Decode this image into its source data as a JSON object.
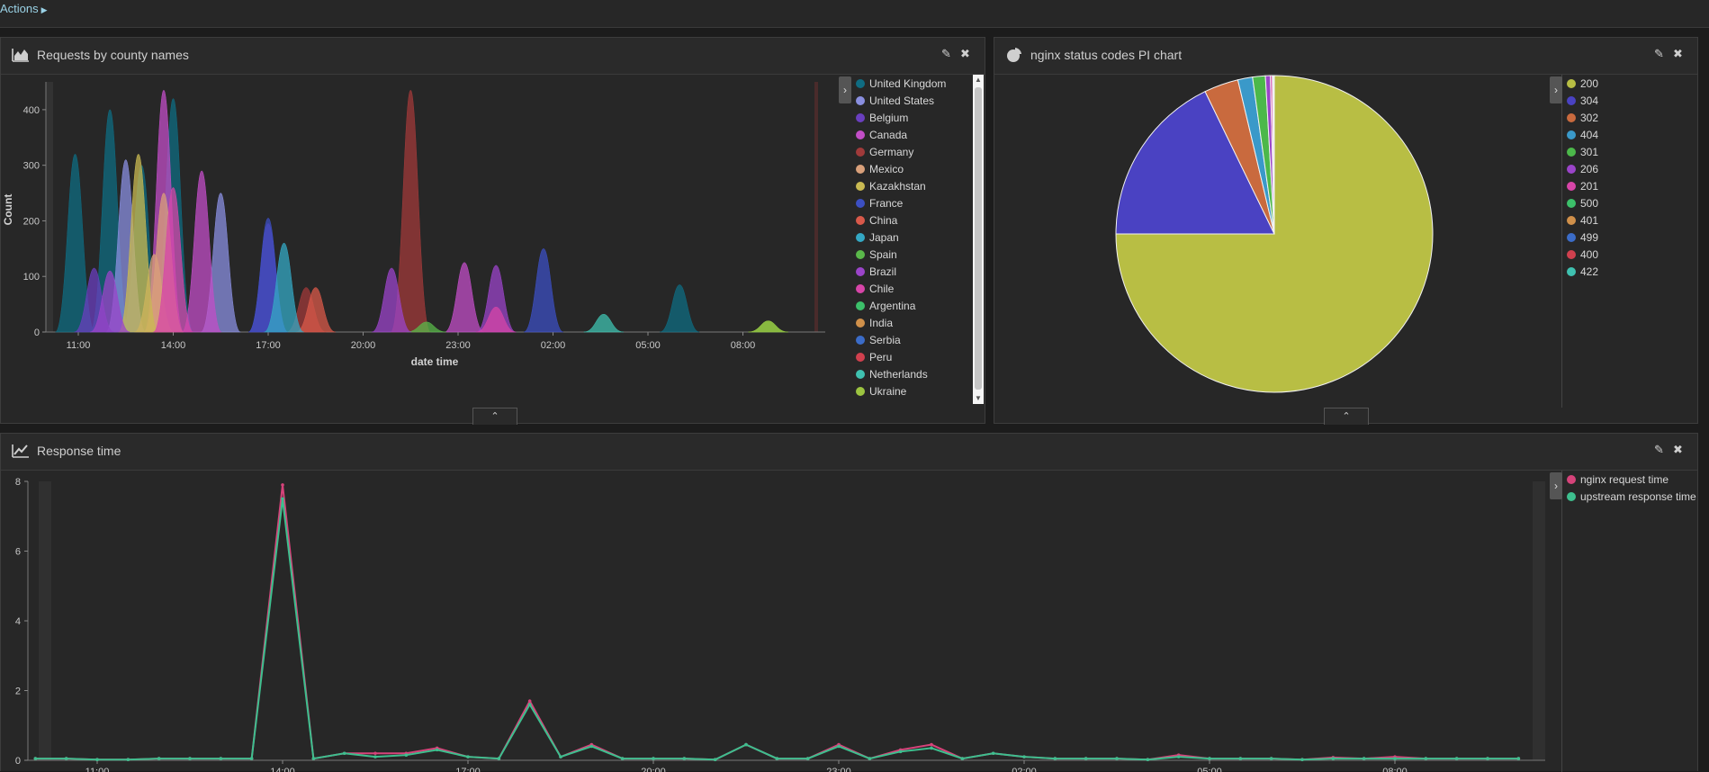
{
  "topbar": {
    "actions_label": "Actions"
  },
  "panels": {
    "requests": {
      "title": "Requests by county names",
      "icon": "area-chart-icon",
      "legend": [
        "United Kingdom",
        "United States",
        "Belgium",
        "Canada",
        "Germany",
        "Mexico",
        "Kazakhstan",
        "France",
        "China",
        "Japan",
        "Spain",
        "Brazil",
        "Chile",
        "Argentina",
        "India",
        "Serbia",
        "Peru",
        "Netherlands",
        "Ukraine"
      ]
    },
    "status": {
      "title": "nginx status codes PI chart",
      "icon": "pie-chart-icon",
      "legend": [
        "200",
        "304",
        "302",
        "404",
        "301",
        "206",
        "201",
        "500",
        "401",
        "499",
        "400",
        "422"
      ]
    },
    "response": {
      "title": "Response time",
      "icon": "line-chart-icon",
      "legend": [
        "nginx request time",
        "upstream response time"
      ]
    }
  },
  "colors": {
    "United Kingdom": "#0f6c82",
    "United States": "#8a8fe0",
    "Belgium": "#6a3fbf",
    "Canada": "#c24ec7",
    "Germany": "#a03a3a",
    "Mexico": "#d9a07a",
    "Kazakhstan": "#c9ba52",
    "France": "#3c4fc2",
    "China": "#d9594a",
    "Japan": "#34a8c4",
    "Spain": "#5ab84a",
    "Brazil": "#9b44c9",
    "Chile": "#d745a8",
    "Argentina": "#3cc06a",
    "India": "#d0904a",
    "Serbia": "#3b6cc8",
    "Peru": "#d0404e",
    "Netherlands": "#3fc1b0",
    "Ukraine": "#9cc440",
    "200": "#b8be44",
    "304": "#4a42c2",
    "302": "#c96a3e",
    "404": "#3a99c9",
    "301": "#4cb84a",
    "206": "#9b44c9",
    "201": "#d745a8",
    "500": "#3cc06a",
    "401": "#d0904a",
    "499": "#3b6cc8",
    "400": "#d0404e",
    "422": "#3fc1b0",
    "nginx request time": "#d6437a",
    "upstream response time": "#3dbf8e"
  },
  "chart_data": [
    {
      "type": "area",
      "title": "Requests by county names",
      "xlabel": "date time",
      "ylabel": "Count",
      "x_ticks": [
        "11:00",
        "14:00",
        "17:00",
        "20:00",
        "23:00",
        "02:00",
        "05:00",
        "08:00"
      ],
      "y_ticks": [
        0,
        100,
        200,
        300,
        400
      ],
      "ylim": [
        0,
        450
      ],
      "x_unit": "hour offset from 11:00",
      "series": [
        {
          "name": "United Kingdom",
          "peaks": [
            [
              -0.1,
              320
            ],
            [
              1.0,
              400
            ],
            [
              2.0,
              300
            ],
            [
              3.0,
              420
            ],
            [
              19.0,
              85
            ]
          ]
        },
        {
          "name": "United States",
          "peaks": [
            [
              1.5,
              310
            ],
            [
              4.5,
              250
            ]
          ]
        },
        {
          "name": "Belgium",
          "peaks": [
            [
              0.5,
              115
            ],
            [
              6.0,
              195
            ]
          ]
        },
        {
          "name": "Canada",
          "peaks": [
            [
              2.7,
              435
            ],
            [
              3.9,
              290
            ],
            [
              12.2,
              125
            ]
          ]
        },
        {
          "name": "Germany",
          "peaks": [
            [
              10.5,
              435
            ],
            [
              7.2,
              80
            ]
          ]
        },
        {
          "name": "Mexico",
          "peaks": [
            [
              2.7,
              250
            ],
            [
              2.4,
              140
            ]
          ]
        },
        {
          "name": "Kazakhstan",
          "peaks": [
            [
              1.9,
              320
            ]
          ]
        },
        {
          "name": "France",
          "peaks": [
            [
              6.0,
              205
            ],
            [
              14.7,
              150
            ]
          ]
        },
        {
          "name": "China",
          "peaks": [
            [
              7.5,
              80
            ]
          ]
        },
        {
          "name": "Japan",
          "peaks": [
            [
              6.5,
              160
            ]
          ]
        },
        {
          "name": "Spain",
          "peaks": [
            [
              11.0,
              18
            ],
            [
              21.8,
              20
            ]
          ]
        },
        {
          "name": "Brazil",
          "peaks": [
            [
              1.0,
              110
            ],
            [
              9.9,
              115
            ],
            [
              13.2,
              120
            ]
          ]
        },
        {
          "name": "Chile",
          "peaks": [
            [
              3.0,
              260
            ],
            [
              13.2,
              45
            ]
          ]
        },
        {
          "name": "Netherlands",
          "peaks": [
            [
              16.6,
              32
            ]
          ]
        },
        {
          "name": "Ukraine",
          "peaks": [
            [
              21.8,
              20
            ]
          ]
        }
      ]
    },
    {
      "type": "pie",
      "title": "nginx status codes PI chart",
      "categories": [
        "200",
        "304",
        "302",
        "404",
        "301",
        "206",
        "201",
        "500",
        "401",
        "499",
        "400",
        "422"
      ],
      "values": [
        75.0,
        17.8,
        3.5,
        1.5,
        1.3,
        0.5,
        0.2,
        0.1,
        0.05,
        0.03,
        0.01,
        0.01
      ]
    },
    {
      "type": "line",
      "title": "Response time",
      "x_ticks": [
        "11:00",
        "14:00",
        "17:00",
        "20:00",
        "23:00",
        "02:00",
        "05:00",
        "08:00"
      ],
      "y_ticks": [
        0,
        2,
        4,
        6,
        8
      ],
      "ylim": [
        0,
        8
      ],
      "x_unit": "hour offset from 11:00",
      "series": [
        {
          "name": "nginx request time",
          "x": [
            -3,
            -2.5,
            -2,
            -1.5,
            -1,
            -0.5,
            0,
            0.5,
            1,
            1.5,
            2,
            2.5,
            3,
            3.5,
            4,
            4.5,
            5,
            5.5,
            6,
            6.5,
            7,
            7.5,
            8,
            8.5,
            9,
            9.5,
            10,
            10.5,
            11,
            11.5,
            12,
            12.5,
            13,
            13.5,
            14,
            14.5,
            15,
            15.5,
            16,
            16.5,
            17,
            17.5,
            18,
            18.5,
            19,
            19.5,
            20,
            20.5,
            21,
            21.5,
            22,
            22.5,
            23,
            23.5,
            24,
            24.5,
            25,
            25.5,
            26
          ],
          "values": [
            0.1,
            0.05,
            0.05,
            0.05,
            0.05,
            0.05,
            0.02,
            0.02,
            0.05,
            0.05,
            0.05,
            0.05,
            7.9,
            0.05,
            0.2,
            0.2,
            0.2,
            0.35,
            0.1,
            0.05,
            1.7,
            0.1,
            0.45,
            0.05,
            0.05,
            0.05,
            0.02,
            0.45,
            0.05,
            0.05,
            0.45,
            0.05,
            0.3,
            0.45,
            0.05,
            0.2,
            0.1,
            0.05,
            0.05,
            0.05,
            0.02,
            0.15,
            0.05,
            0.05,
            0.05,
            0.02,
            0.08,
            0.05,
            0.1,
            0.05,
            0.05,
            0.05,
            0.05,
            0.05,
            0.05,
            0.05,
            0.2,
            0.1,
            0.3
          ]
        },
        {
          "name": "upstream response time",
          "x": [
            -3,
            -2.5,
            -2,
            -1.5,
            -1,
            -0.5,
            0,
            0.5,
            1,
            1.5,
            2,
            2.5,
            3,
            3.5,
            4,
            4.5,
            5,
            5.5,
            6,
            6.5,
            7,
            7.5,
            8,
            8.5,
            9,
            9.5,
            10,
            10.5,
            11,
            11.5,
            12,
            12.5,
            13,
            13.5,
            14,
            14.5,
            15,
            15.5,
            16,
            16.5,
            17,
            17.5,
            18,
            18.5,
            19,
            19.5,
            20,
            20.5,
            21,
            21.5,
            22,
            22.5,
            23,
            23.5,
            24,
            24.5,
            25,
            25.5,
            26
          ],
          "values": [
            0.1,
            0.05,
            0.05,
            0.05,
            0.05,
            0.05,
            0.02,
            0.02,
            0.05,
            0.05,
            0.05,
            0.05,
            7.5,
            0.05,
            0.2,
            0.1,
            0.15,
            0.3,
            0.1,
            0.05,
            1.6,
            0.1,
            0.4,
            0.05,
            0.05,
            0.05,
            0.02,
            0.45,
            0.05,
            0.05,
            0.4,
            0.05,
            0.25,
            0.35,
            0.05,
            0.2,
            0.1,
            0.05,
            0.05,
            0.05,
            0.02,
            0.1,
            0.05,
            0.05,
            0.05,
            0.02,
            0.05,
            0.05,
            0.05,
            0.05,
            0.05,
            0.05,
            0.05,
            0.05,
            0.05,
            0.05,
            0.2,
            0.1,
            0.25
          ]
        }
      ]
    }
  ]
}
